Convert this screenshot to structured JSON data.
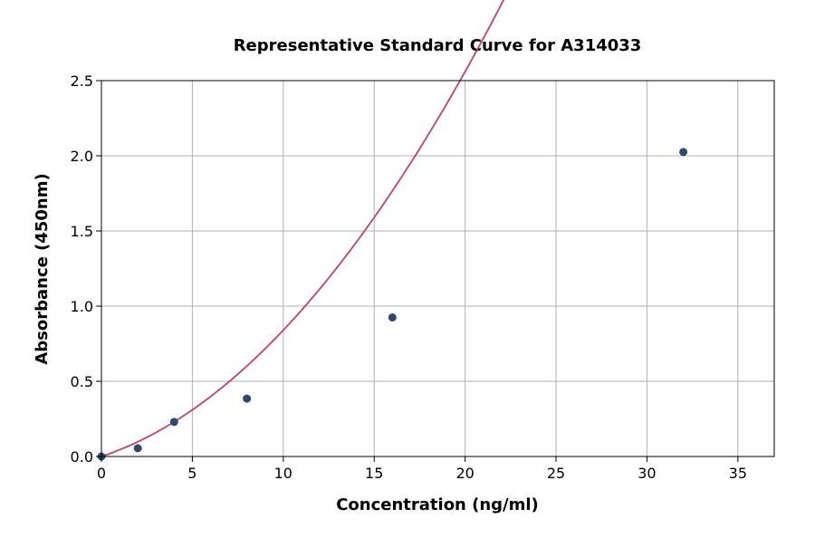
{
  "chart_data": {
    "type": "scatter",
    "title": "Representative Standard Curve for A314033",
    "xlabel": "Concentration (ng/ml)",
    "ylabel": "Absorbance (450nm)",
    "xlim": [
      0,
      37
    ],
    "ylim": [
      0,
      2.5
    ],
    "xticks": [
      0,
      5,
      10,
      15,
      20,
      25,
      30,
      35
    ],
    "xtick_labels": [
      "0",
      "5",
      "10",
      "15",
      "20",
      "25",
      "30",
      "35"
    ],
    "yticks": [
      0,
      0.5,
      1.0,
      1.5,
      2.0,
      2.5
    ],
    "ytick_labels": [
      "0.0",
      "0.5",
      "1.0",
      "1.5",
      "2.0",
      "2.5"
    ],
    "grid": true,
    "points": {
      "x": [
        0,
        2,
        4,
        8,
        16,
        32
      ],
      "y": [
        0.0,
        0.055,
        0.23,
        0.385,
        0.925,
        2.025
      ],
      "color": "#2e4a6e"
    },
    "fit": {
      "x_range": [
        0,
        32
      ],
      "a": 0.04,
      "b": 0.0044,
      "color": "#b5476b"
    }
  }
}
